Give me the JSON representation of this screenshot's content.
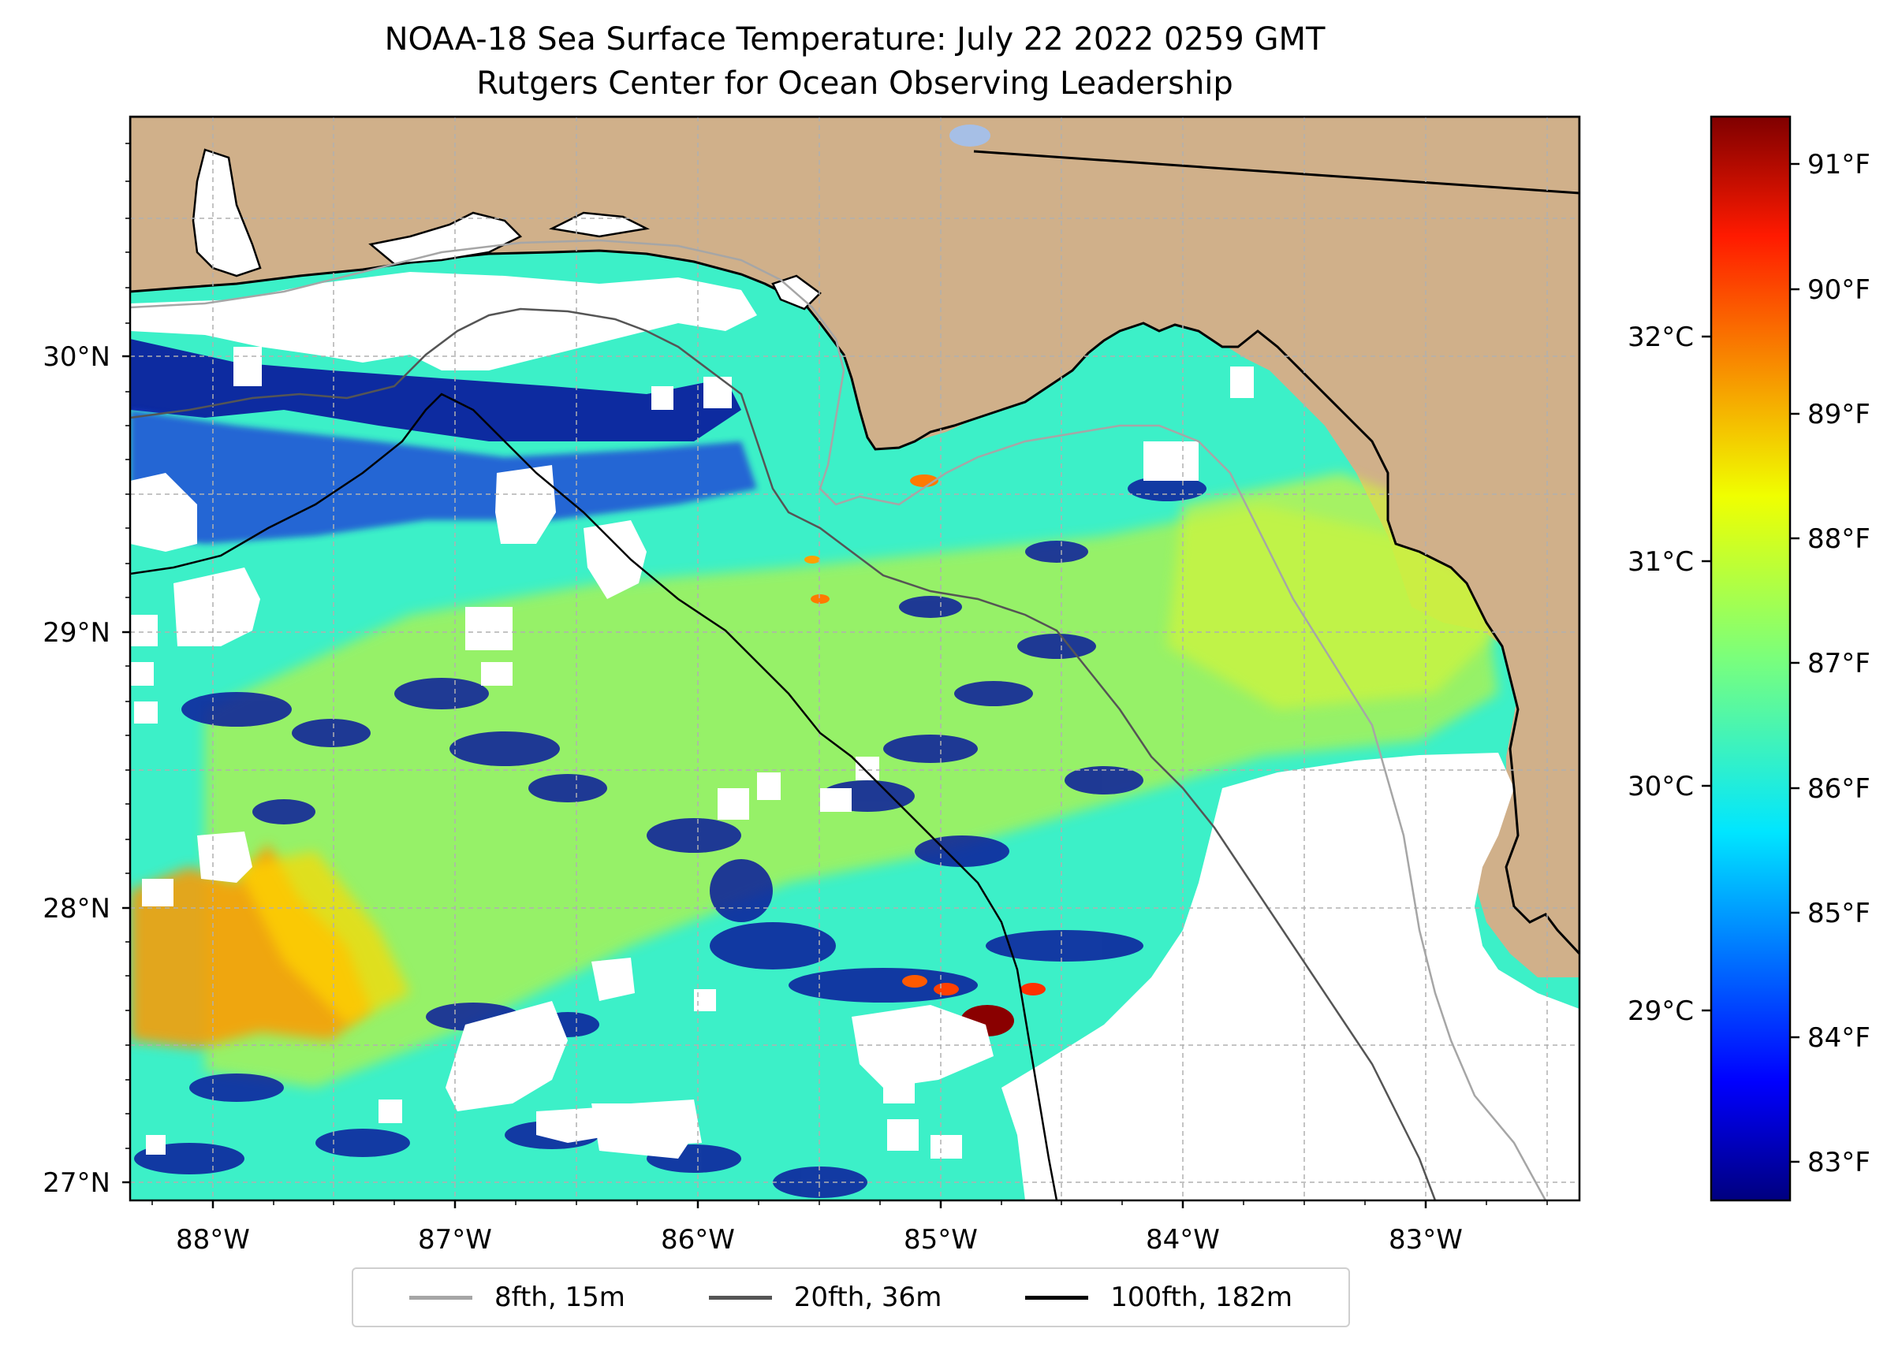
{
  "title_line1": "NOAA-18 Sea Surface Temperature: July 22 2022 0259 GMT",
  "title_line2": "Rutgers Center for Ocean Observing Leadership",
  "map": {
    "lat_labels": [
      "30°N",
      "29°N",
      "28°N",
      "27°N"
    ],
    "lon_labels": [
      "88°W",
      "87°W",
      "86°W",
      "85°W",
      "84°W",
      "83°W"
    ],
    "land_color": "#d0b08a",
    "cloud_color": "#ffffff",
    "lake_color": "#a6bfe6",
    "gridline_color": "#b0b0b0"
  },
  "colorbar": {
    "fahrenheit_labels": [
      "91°F",
      "90°F",
      "89°F",
      "88°F",
      "87°F",
      "86°F",
      "85°F",
      "84°F",
      "83°F"
    ],
    "celsius_labels": [
      "32°C",
      "31°C",
      "30°C",
      "29°C"
    ],
    "colormap": "jet",
    "range_f": [
      82.7,
      91.4
    ]
  },
  "legend": {
    "items": [
      {
        "label": "8fth, 15m",
        "color": "#a6a6a6"
      },
      {
        "label": "20fth, 36m",
        "color": "#555555"
      },
      {
        "label": "100fth, 182m",
        "color": "#000000"
      }
    ]
  }
}
